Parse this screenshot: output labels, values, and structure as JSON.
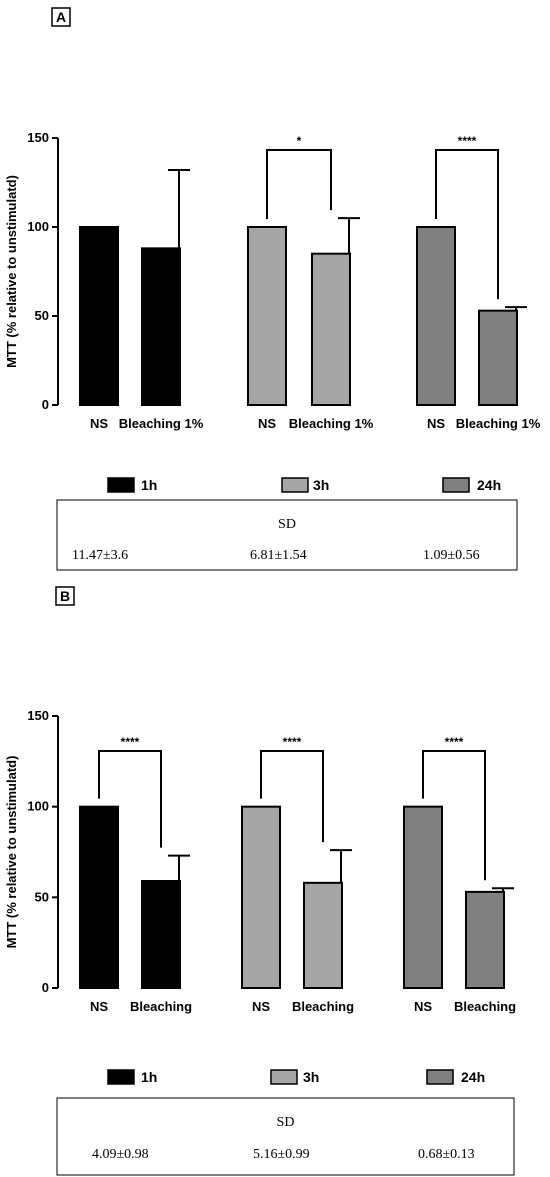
{
  "colors": {
    "1h": "#000000",
    "3h": "#a6a6a6",
    "24h": "#808080"
  },
  "legend": [
    {
      "label": "1h",
      "color": "#000000"
    },
    {
      "label": "3h",
      "color": "#a6a6a6"
    },
    {
      "label": "24h",
      "color": "#808080"
    }
  ],
  "chart_data": [
    {
      "panel_label": "A",
      "type": "bar",
      "ylabel": "MTT (% relative to unstimulatd)",
      "ylim": [
        0,
        150
      ],
      "yticks": [
        0,
        50,
        100,
        150
      ],
      "groups": [
        {
          "series": "1h",
          "bars": [
            {
              "category": "NS",
              "value": 100,
              "error": 0
            },
            {
              "category": "Bleaching 1%",
              "value": 88,
              "error": 44
            }
          ],
          "significance": ""
        },
        {
          "series": "3h",
          "bars": [
            {
              "category": "NS",
              "value": 100,
              "error": 0
            },
            {
              "category": "Bleaching 1%",
              "value": 85,
              "error": 20
            }
          ],
          "significance": "*"
        },
        {
          "series": "24h",
          "bars": [
            {
              "category": "NS",
              "value": 100,
              "error": 0
            },
            {
              "category": "Bleaching 1%",
              "value": 53,
              "error": 2
            }
          ],
          "significance": "****"
        }
      ],
      "sd_table": {
        "title": "SD",
        "values": [
          "11.47±3.6",
          "6.81±1.54",
          "1.09±0.56"
        ]
      }
    },
    {
      "panel_label": "B",
      "type": "bar",
      "ylabel": "MTT (% relative to unstimulatd)",
      "ylim": [
        0,
        150
      ],
      "yticks": [
        0,
        50,
        100,
        150
      ],
      "groups": [
        {
          "series": "1h",
          "bars": [
            {
              "category": "NS",
              "value": 100,
              "error": 0
            },
            {
              "category": "Bleaching",
              "value": 59,
              "error": 14
            }
          ],
          "significance": "****"
        },
        {
          "series": "3h",
          "bars": [
            {
              "category": "NS",
              "value": 100,
              "error": 0
            },
            {
              "category": "Bleaching",
              "value": 58,
              "error": 18
            }
          ],
          "significance": "****"
        },
        {
          "series": "24h",
          "bars": [
            {
              "category": "NS",
              "value": 100,
              "error": 0
            },
            {
              "category": "Bleaching",
              "value": 53,
              "error": 2
            }
          ],
          "significance": "****"
        }
      ],
      "sd_table": {
        "title": "SD",
        "values": [
          "4.09±0.98",
          "5.16±0.99",
          "0.68±0.13"
        ]
      }
    }
  ]
}
